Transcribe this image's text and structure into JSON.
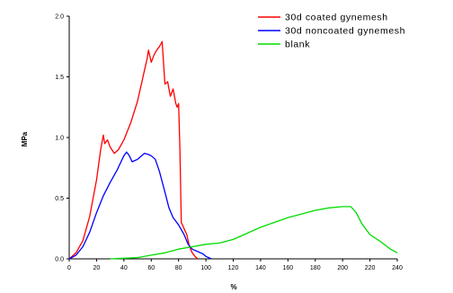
{
  "chart_data": {
    "type": "line",
    "title": "",
    "xlabel": "%",
    "ylabel": "MPa",
    "xlim": [
      0,
      240
    ],
    "ylim": [
      0,
      2.0
    ],
    "grid": false,
    "legend_position": "top-right",
    "x_ticks": [
      "0",
      "20",
      "40",
      "60",
      "80",
      "100",
      "120",
      "140",
      "160",
      "180",
      "200",
      "220",
      "240"
    ],
    "y_ticks": [
      "0.0",
      "0.5",
      "1.0",
      "1.5",
      "2.0"
    ],
    "x_tick_values": [
      0,
      20,
      40,
      60,
      80,
      100,
      120,
      140,
      160,
      180,
      200,
      220,
      240
    ],
    "y_tick_values": [
      0,
      0.5,
      1.0,
      1.5,
      2.0
    ],
    "series": [
      {
        "name": "30d coated gynemesh",
        "color": "#ff0000",
        "points": [
          [
            0,
            0
          ],
          [
            5,
            0.05
          ],
          [
            10,
            0.15
          ],
          [
            15,
            0.35
          ],
          [
            20,
            0.65
          ],
          [
            23,
            0.9
          ],
          [
            25,
            1.02
          ],
          [
            26,
            0.95
          ],
          [
            28,
            0.98
          ],
          [
            30,
            0.92
          ],
          [
            33,
            0.87
          ],
          [
            36,
            0.9
          ],
          [
            40,
            0.98
          ],
          [
            45,
            1.12
          ],
          [
            50,
            1.3
          ],
          [
            53,
            1.45
          ],
          [
            55,
            1.55
          ],
          [
            57,
            1.65
          ],
          [
            58,
            1.72
          ],
          [
            60,
            1.62
          ],
          [
            62,
            1.68
          ],
          [
            64,
            1.72
          ],
          [
            66,
            1.75
          ],
          [
            68,
            1.79
          ],
          [
            69,
            1.62
          ],
          [
            70,
            1.44
          ],
          [
            72,
            1.46
          ],
          [
            74,
            1.34
          ],
          [
            76,
            1.4
          ],
          [
            78,
            1.28
          ],
          [
            79,
            1.25
          ],
          [
            80,
            1.28
          ],
          [
            81,
            0.9
          ],
          [
            82,
            0.3
          ],
          [
            84,
            0.25
          ],
          [
            86,
            0.2
          ],
          [
            88,
            0.1
          ],
          [
            90,
            0.05
          ],
          [
            92,
            0.02
          ],
          [
            94,
            0
          ]
        ]
      },
      {
        "name": "30d noncoated gynemesh",
        "color": "#0000ff",
        "points": [
          [
            0,
            0
          ],
          [
            5,
            0.03
          ],
          [
            10,
            0.1
          ],
          [
            15,
            0.22
          ],
          [
            20,
            0.38
          ],
          [
            25,
            0.52
          ],
          [
            30,
            0.63
          ],
          [
            35,
            0.73
          ],
          [
            40,
            0.85
          ],
          [
            42,
            0.88
          ],
          [
            44,
            0.85
          ],
          [
            46,
            0.8
          ],
          [
            48,
            0.81
          ],
          [
            50,
            0.82
          ],
          [
            52,
            0.84
          ],
          [
            55,
            0.87
          ],
          [
            58,
            0.86
          ],
          [
            60,
            0.85
          ],
          [
            63,
            0.82
          ],
          [
            66,
            0.72
          ],
          [
            70,
            0.55
          ],
          [
            73,
            0.42
          ],
          [
            76,
            0.34
          ],
          [
            80,
            0.28
          ],
          [
            84,
            0.2
          ],
          [
            87,
            0.12
          ],
          [
            90,
            0.08
          ],
          [
            94,
            0.06
          ],
          [
            98,
            0.04
          ],
          [
            100,
            0.02
          ],
          [
            102,
            0.01
          ],
          [
            104,
            0
          ]
        ]
      },
      {
        "name": "blank",
        "color": "#00dd00",
        "points": [
          [
            30,
            0
          ],
          [
            40,
            0.005
          ],
          [
            50,
            0.01
          ],
          [
            60,
            0.03
          ],
          [
            70,
            0.05
          ],
          [
            80,
            0.08
          ],
          [
            90,
            0.1
          ],
          [
            100,
            0.12
          ],
          [
            110,
            0.13
          ],
          [
            120,
            0.16
          ],
          [
            130,
            0.21
          ],
          [
            140,
            0.26
          ],
          [
            150,
            0.3
          ],
          [
            160,
            0.34
          ],
          [
            170,
            0.37
          ],
          [
            180,
            0.4
          ],
          [
            190,
            0.42
          ],
          [
            200,
            0.43
          ],
          [
            206,
            0.43
          ],
          [
            210,
            0.38
          ],
          [
            214,
            0.29
          ],
          [
            220,
            0.2
          ],
          [
            228,
            0.14
          ],
          [
            235,
            0.08
          ],
          [
            240,
            0.05
          ]
        ]
      }
    ]
  }
}
